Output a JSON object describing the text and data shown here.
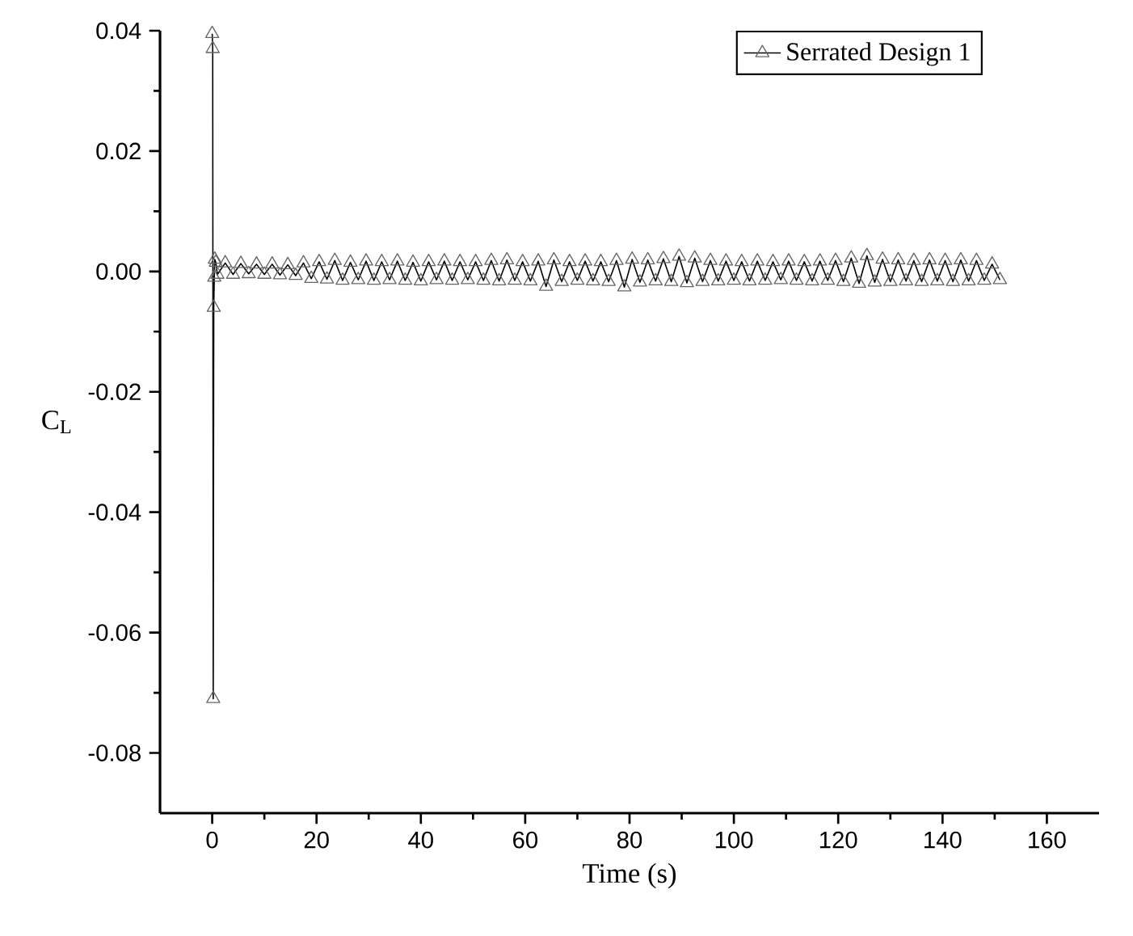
{
  "chart_data": {
    "type": "line",
    "xlabel": "Time (s)",
    "ylabel": "C$_{L}$",
    "xlim": [
      -10,
      170
    ],
    "xticks": [
      0,
      20,
      40,
      60,
      80,
      100,
      120,
      140,
      160
    ],
    "ylim": [
      -0.09,
      0.04
    ],
    "yticks": [
      {
        "value": -0.08,
        "label": "-0.08"
      },
      {
        "value": -0.06,
        "label": "-0.06"
      },
      {
        "value": -0.04,
        "label": "-0.04"
      },
      {
        "value": -0.02,
        "label": "-0.02"
      },
      {
        "value": 0,
        "label": "0.00"
      },
      {
        "value": 0.02,
        "label": "0.02"
      },
      {
        "value": 0.04,
        "label": "0.04"
      }
    ],
    "grid": false,
    "legend": "top right",
    "marker": "triangle",
    "line_style": "solid",
    "series": [
      {
        "name": "Serrated Design 1",
        "color": "#000000",
        "x": [
          0,
          0.1,
          0.2,
          0.3,
          0.4,
          0.5,
          0.7,
          1,
          2.5,
          4,
          5.5,
          7,
          8.5,
          10,
          11.5,
          13,
          14.5,
          16,
          17.5,
          19,
          20.5,
          22,
          23.5,
          25,
          26.5,
          28,
          29.5,
          31,
          32.5,
          34,
          35.5,
          37,
          38.5,
          40,
          41.5,
          43,
          44.5,
          46,
          47.5,
          49,
          50.5,
          52,
          53.5,
          55,
          56.5,
          58,
          59.5,
          61,
          62.5,
          64,
          65.5,
          67,
          68.5,
          70,
          71.5,
          73,
          74.5,
          76,
          77.5,
          79,
          80.5,
          82,
          83.5,
          85,
          86.5,
          88,
          89.5,
          91,
          92.5,
          94,
          95.5,
          97,
          98.5,
          100,
          101.5,
          103,
          104.5,
          106,
          107.5,
          109,
          110.5,
          112,
          113.5,
          115,
          116.5,
          118,
          119.5,
          121,
          122.5,
          124,
          125.5,
          127,
          128.5,
          130,
          131.5,
          133,
          134.5,
          136,
          137.5,
          139,
          140.5,
          142,
          143.5,
          145,
          146.5,
          148,
          149.5,
          151
        ],
        "values": [
          0.0395,
          0.037,
          -0.071,
          -0.006,
          -0.001,
          0.002,
          0.0015,
          -0.0005,
          0.0014,
          -0.0005,
          0.0013,
          -0.0004,
          0.0012,
          -0.0005,
          0.0012,
          -0.0006,
          0.0011,
          -0.0007,
          0.0014,
          -0.0012,
          0.0016,
          -0.0013,
          0.0018,
          -0.0015,
          0.0015,
          -0.0014,
          0.0017,
          -0.0015,
          0.0016,
          -0.0014,
          0.0017,
          -0.0015,
          0.0015,
          -0.0016,
          0.0016,
          -0.0014,
          0.0017,
          -0.0015,
          0.0016,
          -0.0014,
          0.0016,
          -0.0015,
          0.0018,
          -0.0016,
          0.0019,
          -0.0015,
          0.0016,
          -0.0016,
          0.0017,
          -0.0025,
          0.0019,
          -0.0017,
          0.0016,
          -0.0015,
          0.0017,
          -0.0016,
          0.0016,
          -0.0017,
          0.0018,
          -0.0026,
          0.002,
          -0.0018,
          0.0019,
          -0.0016,
          0.0021,
          -0.0017,
          0.0025,
          -0.0019,
          0.0022,
          -0.0017,
          0.0018,
          -0.0016,
          0.0017,
          -0.0015,
          0.0016,
          -0.0016,
          0.0017,
          -0.0015,
          0.0016,
          -0.0014,
          0.0017,
          -0.0015,
          0.0016,
          -0.0016,
          0.0017,
          -0.0015,
          0.0018,
          -0.0017,
          0.0022,
          -0.002,
          0.0026,
          -0.0018,
          0.002,
          -0.0017,
          0.0019,
          -0.0016,
          0.0018,
          -0.0017,
          0.0019,
          -0.0016,
          0.0018,
          -0.0017,
          0.0019,
          -0.0016,
          0.0018,
          -0.0015,
          0.0012,
          -0.0014
        ]
      }
    ]
  }
}
